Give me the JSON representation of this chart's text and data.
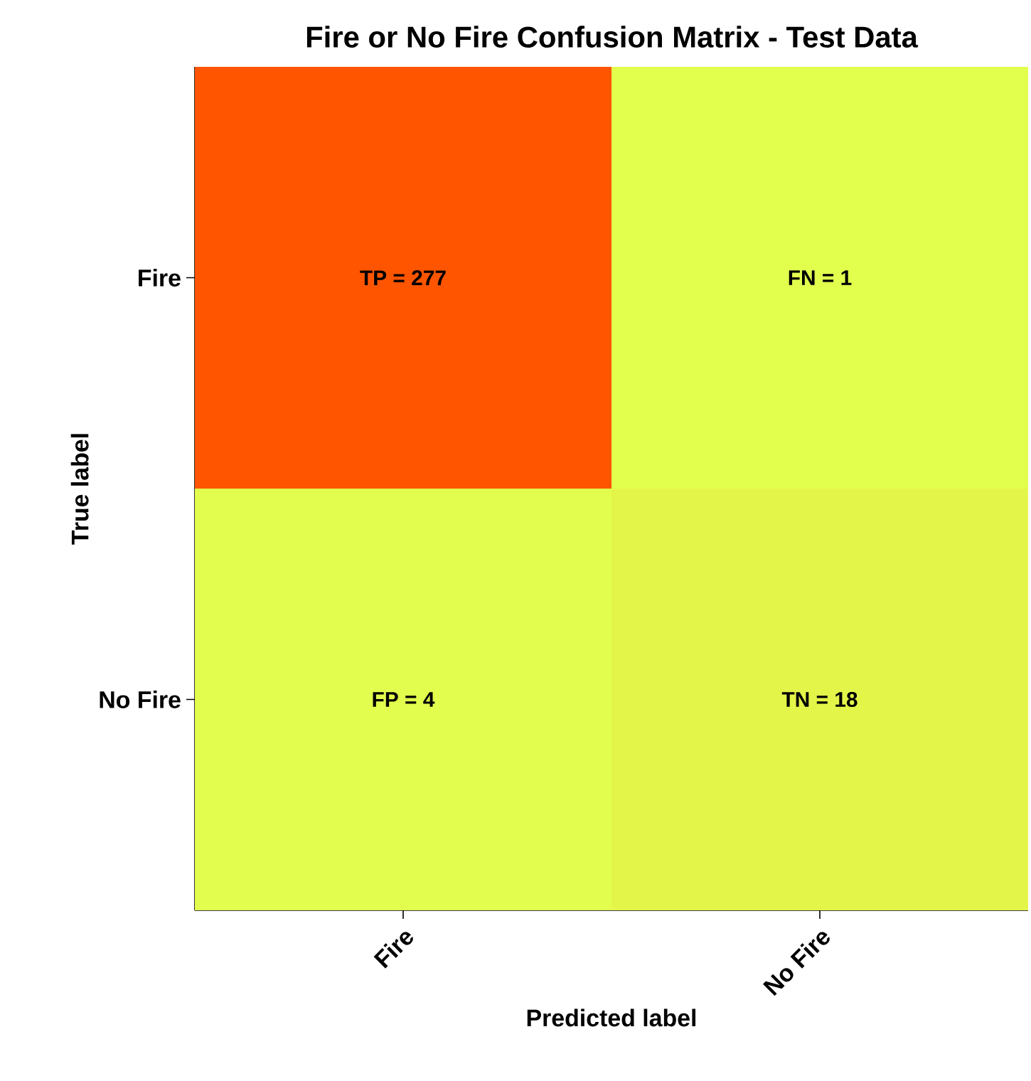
{
  "chart_data": {
    "type": "heatmap",
    "title": "Fire or No Fire Confusion Matrix - Test Data",
    "xlabel": "Predicted label",
    "ylabel": "True label",
    "categories": [
      "Fire",
      "No Fire"
    ],
    "y_categories": [
      "Fire",
      "No Fire"
    ],
    "cells": [
      [
        277,
        1
      ],
      [
        4,
        18
      ]
    ],
    "cell_labels": [
      [
        "TP = 277",
        "FN = 1"
      ],
      [
        "FP = 4",
        "TN = 18"
      ]
    ]
  }
}
